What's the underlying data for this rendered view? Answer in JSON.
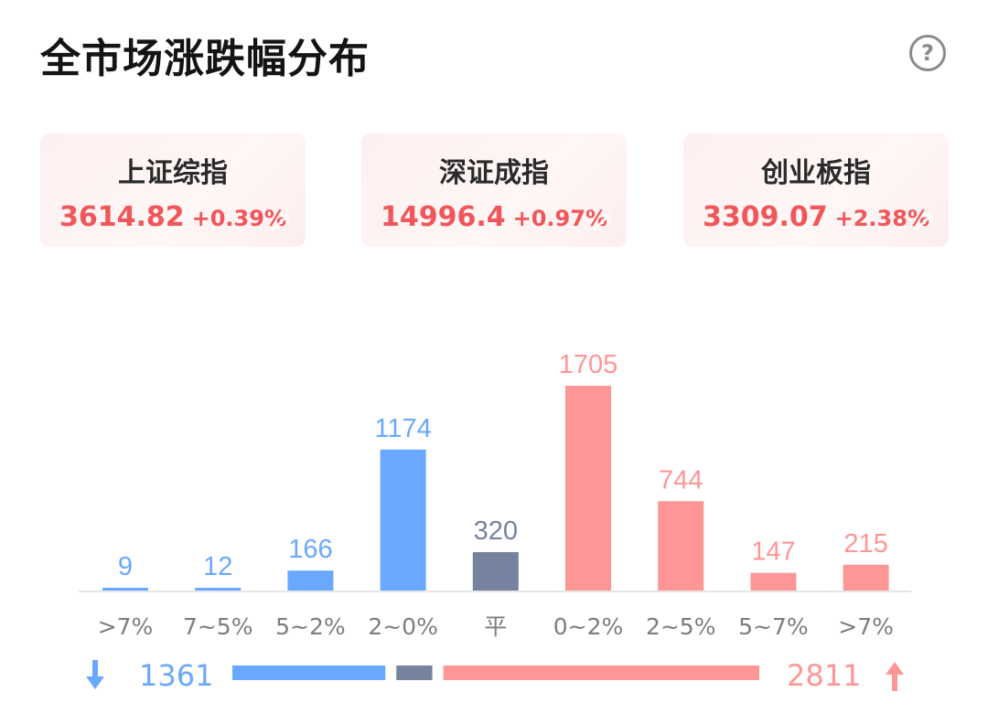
{
  "header": {
    "title": "全市场涨跌幅分布",
    "help_label": "?"
  },
  "indices": [
    {
      "name": "上证综指",
      "value": "3614.82",
      "change": "+0.39%"
    },
    {
      "name": "深证成指",
      "value": "14996.4",
      "change": "+0.97%"
    },
    {
      "name": "创业板指",
      "value": "3309.07",
      "change": "+2.38%"
    }
  ],
  "colors": {
    "down": "#6aa8ff",
    "flat": "#76839f",
    "up": "#ff9696",
    "up_text": "#f0565a",
    "axis_text": "#7d7d7d"
  },
  "chart_data": {
    "type": "bar",
    "categories": [
      ">7%",
      "7~5%",
      "5~2%",
      "2~0%",
      "平",
      "0~2%",
      "2~5%",
      "5~7%",
      ">7%"
    ],
    "values": [
      9,
      12,
      166,
      1174,
      320,
      1705,
      744,
      147,
      215
    ],
    "groups": [
      "down",
      "down",
      "down",
      "down",
      "flat",
      "up",
      "up",
      "up",
      "up"
    ],
    "title": "全市场涨跌幅分布",
    "xlabel": "",
    "ylabel": ""
  },
  "summary": {
    "down_total": "1361",
    "up_total": "2811",
    "down_icon": "arrow-down-icon",
    "up_icon": "arrow-up-icon"
  }
}
